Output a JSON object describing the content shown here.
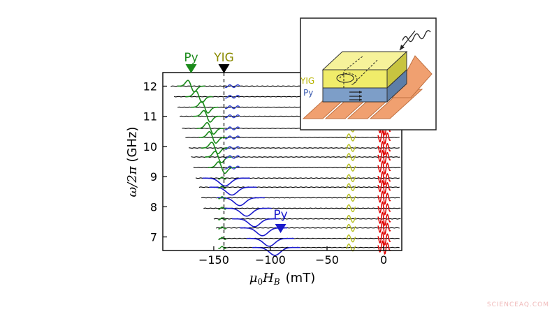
{
  "chart_data": {
    "type": "line",
    "title": "",
    "xlabel_math": {
      "symbol": "μ",
      "sub0": "0",
      "H": "H",
      "subB": "B",
      "unit": "(mT)"
    },
    "ylabel_math": {
      "omega": "ω/2π",
      "unit": "(GHz)"
    },
    "x_ticks": [
      -150,
      -100,
      -50,
      0
    ],
    "x_tick_labels": [
      "−150",
      "−100",
      "−50",
      "0"
    ],
    "y_ticks": [
      7,
      8,
      9,
      10,
      11,
      12
    ],
    "y_tick_labels": [
      "7",
      "8",
      "9",
      "10",
      "11",
      "12"
    ],
    "xlim": [
      -195,
      16
    ],
    "ylim": [
      6.55,
      12.45
    ],
    "grid": false,
    "frequencies_GHz": [
      12.0,
      11.65,
      11.3,
      11.0,
      10.6,
      10.3,
      9.95,
      9.65,
      9.3,
      8.95,
      8.65,
      8.3,
      7.95,
      7.6,
      7.3,
      6.95,
      6.65
    ],
    "trace_start_mT": [
      -188,
      -185,
      -182,
      -180,
      -178,
      -175,
      -172,
      -170,
      -168,
      -166,
      -163,
      -161,
      -159,
      -150,
      -148,
      -145,
      -142
    ],
    "yig_field_mT": -141,
    "py_field_mT": [
      -170,
      -163,
      -158,
      -156,
      -153,
      -151,
      -149,
      -146,
      -143,
      -139,
      -133,
      -126,
      -120,
      -113,
      -106,
      -100,
      -95
    ],
    "py_resonance_color": [
      "#1a8a1a",
      "#1a8a1a",
      "#1a8a1a",
      "#1a8a1a",
      "#1a8a1a",
      "#1a8a1a",
      "#1a8a1a",
      "#1a8a1a",
      "#1a8a1a",
      "#1a1acc",
      "#1a1acc",
      "#1a1acc",
      "#1a1acc",
      "#1a1acc",
      "#1a1acc",
      "#1a1acc",
      "#1a1acc"
    ],
    "yellow_feature_mT": -29,
    "red_feature_mT": 0,
    "colors": {
      "trace": "#000000",
      "py_green": "#1a8a1a",
      "py_blue": "#1a1acc",
      "yig_segment": "#3040d0",
      "yellow": "#b8c020",
      "red": "#e00000",
      "dashed_line": "#000000",
      "marker_yig": "#000000",
      "yig_label": "#8a8a00"
    },
    "markers": [
      {
        "label": "Py",
        "x_mT": -170,
        "color": "#1a8a1a",
        "position": "top"
      },
      {
        "label": "YIG",
        "x_mT": -141,
        "color": "#000000",
        "label_color": "#8a8a00",
        "position": "top"
      },
      {
        "label": "Py",
        "x_mT": -91,
        "color": "#1a1acc",
        "position": "inside"
      }
    ]
  },
  "inset": {
    "yig_label": "YIG",
    "py_label": "Py",
    "colors": {
      "yig": "#f0ec6a",
      "yig_top": "#f6f29a",
      "yig_side": "#c8c440",
      "py": "#7d9ec8",
      "py_side": "#5d7ea8",
      "substrate": "#f0a070",
      "substrate_dark": "#c07040",
      "frame": "#222222"
    }
  },
  "watermark": "SCIENCEAQ.COM"
}
